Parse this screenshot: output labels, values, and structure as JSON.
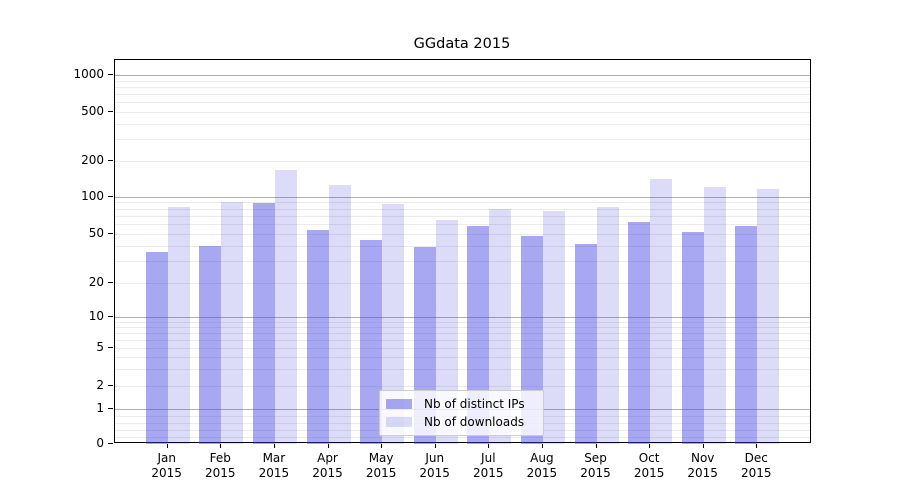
{
  "title": "GGdata 2015",
  "chart_data": {
    "type": "bar",
    "title": "GGdata 2015",
    "categories": [
      "Jan 2015",
      "Feb 2015",
      "Mar 2015",
      "Apr 2015",
      "May 2015",
      "Jun 2015",
      "Jul 2015",
      "Aug 2015",
      "Sep 2015",
      "Oct 2015",
      "Nov 2015",
      "Dec 2015"
    ],
    "months": [
      "Jan",
      "Feb",
      "Mar",
      "Apr",
      "May",
      "Jun",
      "Jul",
      "Aug",
      "Sep",
      "Oct",
      "Nov",
      "Dec"
    ],
    "year_label": "2015",
    "series": [
      {
        "name": "Nb of distinct IPs",
        "color": "rgba(62,62,226,0.45)",
        "solid_color": "#a8a8f2",
        "values": [
          36,
          40,
          89,
          54,
          45,
          39,
          58,
          48,
          42,
          63,
          52,
          58
        ]
      },
      {
        "name": "Nb of downloads",
        "color": "rgba(49,49,214,0.17)",
        "solid_color": "#dcdcf8",
        "values": [
          83,
          90,
          169,
          126,
          88,
          65,
          79,
          77,
          83,
          142,
          121,
          117
        ]
      }
    ],
    "y_axis": {
      "scale": "symlog",
      "tick_values": [
        1000,
        500,
        200,
        100,
        50,
        20,
        10,
        5,
        2,
        1,
        0
      ],
      "tick_labels": [
        "1000",
        "500",
        "200",
        "100",
        "50",
        "20",
        "10",
        "5",
        "2",
        "1",
        "0"
      ],
      "major_grid_values": [
        1,
        10,
        100,
        1000
      ],
      "ylim": [
        0,
        1300
      ]
    },
    "xlabel": "",
    "ylabel": "",
    "grid": true,
    "legend": {
      "position": "lower center",
      "entries": [
        "Nb of distinct IPs",
        "Nb of downloads"
      ]
    }
  },
  "colors": {
    "major_grid": "#b0b0b0",
    "minor_grid": "#ebebeb",
    "axis": "#000000",
    "legend_border": "#cccccc"
  }
}
